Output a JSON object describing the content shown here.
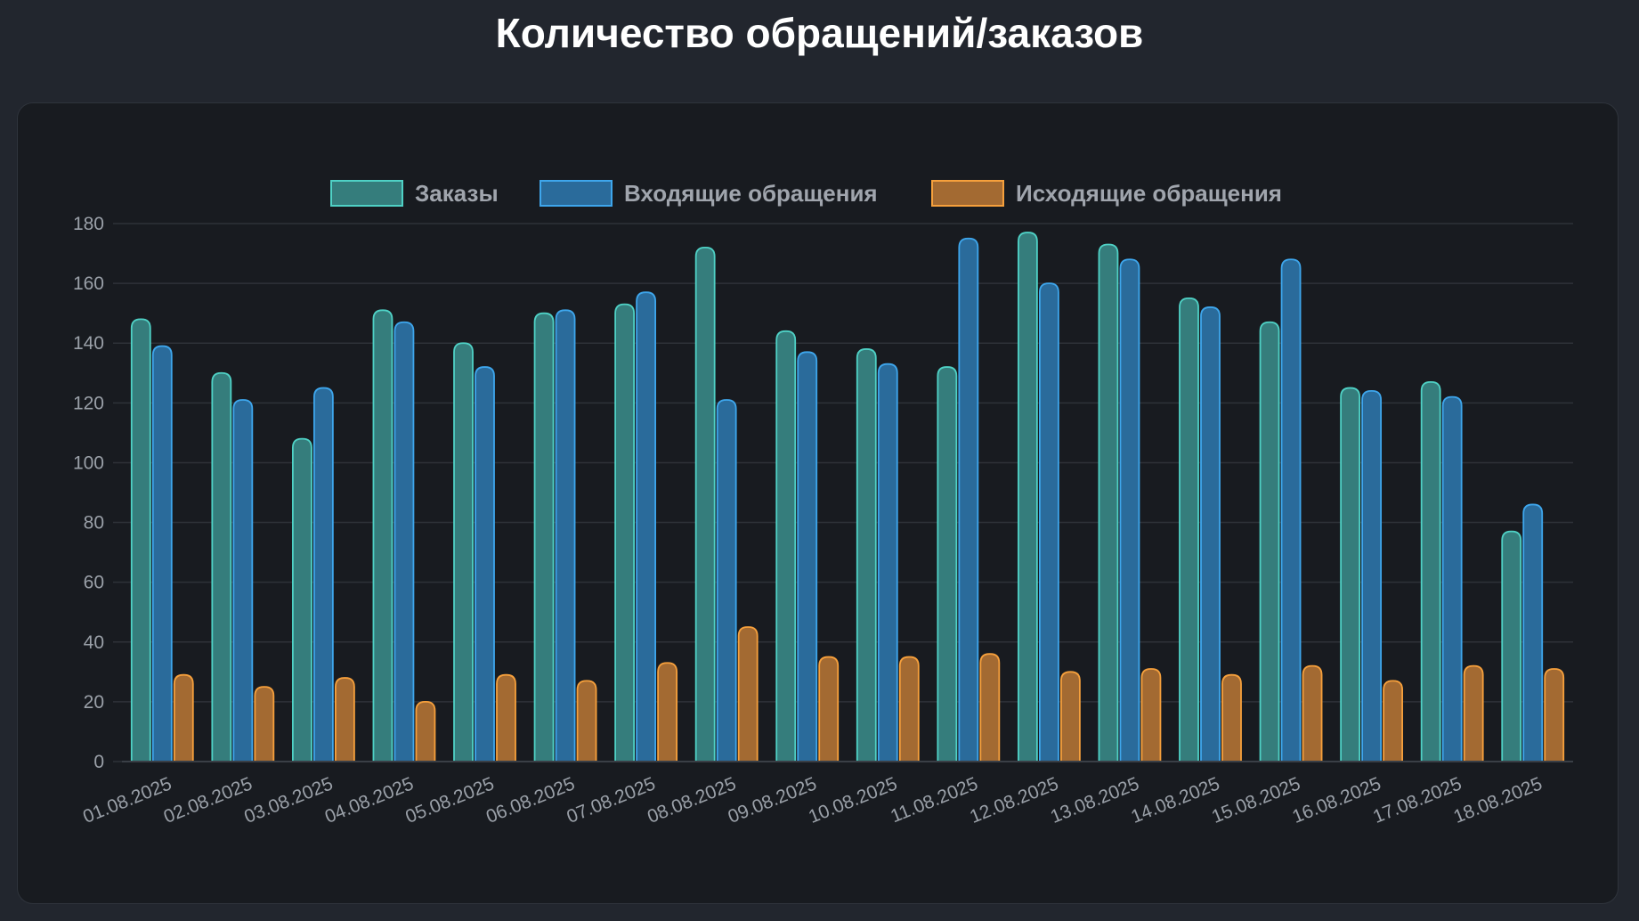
{
  "title": "Количество обращений/заказов",
  "chart_data": {
    "type": "bar",
    "title": "",
    "xlabel": "",
    "ylabel": "",
    "ylim": [
      0,
      180
    ],
    "yticks": [
      0,
      20,
      40,
      60,
      80,
      100,
      120,
      140,
      160,
      180
    ],
    "grid": true,
    "legend_position": "top",
    "categories": [
      "01.08.2025",
      "02.08.2025",
      "03.08.2025",
      "04.08.2025",
      "05.08.2025",
      "06.08.2025",
      "07.08.2025",
      "08.08.2025",
      "09.08.2025",
      "10.08.2025",
      "11.08.2025",
      "12.08.2025",
      "13.08.2025",
      "14.08.2025",
      "15.08.2025",
      "16.08.2025",
      "17.08.2025",
      "18.08.2025"
    ],
    "series": [
      {
        "name": "Заказы",
        "color": "#4fd1c5",
        "fill": "#357d7c",
        "values": [
          148,
          130,
          108,
          151,
          140,
          150,
          153,
          172,
          144,
          138,
          132,
          177,
          173,
          155,
          147,
          125,
          127,
          77
        ]
      },
      {
        "name": "Входящие обращения",
        "color": "#3ea6ec",
        "fill": "#2a6b9b",
        "values": [
          139,
          121,
          125,
          147,
          132,
          151,
          157,
          121,
          137,
          133,
          175,
          160,
          168,
          152,
          168,
          124,
          122,
          86
        ]
      },
      {
        "name": "Исходящие обращения",
        "color": "#f6a03c",
        "fill": "#a36a32",
        "values": [
          29,
          25,
          28,
          20,
          29,
          27,
          33,
          45,
          35,
          35,
          36,
          30,
          31,
          29,
          32,
          27,
          32,
          31
        ]
      }
    ]
  }
}
